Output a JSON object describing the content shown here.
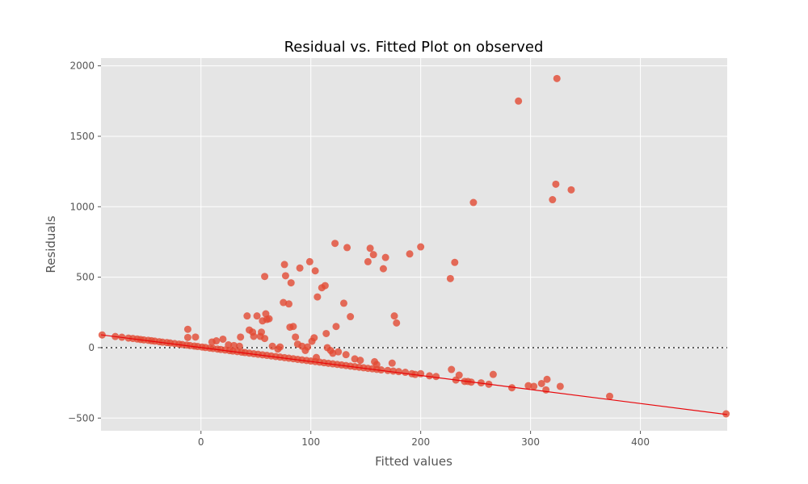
{
  "chart_data": {
    "type": "scatter",
    "title": "Residual vs. Fitted Plot on observed",
    "xlabel": "Fitted values",
    "ylabel": "Residuals",
    "xlim": [
      -91,
      479
    ],
    "ylim": [
      -590,
      2055
    ],
    "xticks": [
      0,
      100,
      200,
      300,
      400
    ],
    "yticks": [
      -500,
      0,
      500,
      1000,
      1500,
      2000
    ],
    "xtick_labels": [
      "0",
      "100",
      "200",
      "300",
      "400"
    ],
    "ytick_labels": [
      "−500",
      "0",
      "500",
      "1000",
      "1500",
      "2000"
    ],
    "grid": true,
    "reference_line": {
      "y": 0,
      "style": "dotted",
      "color": "#333333"
    },
    "fit_line": {
      "points": [
        [
          -91,
          91
        ],
        [
          479,
          -475
        ]
      ],
      "color": "#e8060a"
    },
    "colors": {
      "background": "#e5e5e5",
      "grid": "#ffffff",
      "points": "#e24a33"
    },
    "points": [
      [
        -90,
        90
      ],
      [
        -78,
        79
      ],
      [
        -72,
        74
      ],
      [
        -66,
        68
      ],
      [
        -62,
        65
      ],
      [
        -58,
        61
      ],
      [
        -55,
        58
      ],
      [
        -52,
        55
      ],
      [
        -48,
        52
      ],
      [
        -45,
        49
      ],
      [
        -42,
        46
      ],
      [
        -38,
        42
      ],
      [
        -35,
        39
      ],
      [
        -31,
        36
      ],
      [
        -28,
        33
      ],
      [
        -24,
        29
      ],
      [
        -20,
        25
      ],
      [
        -17,
        22
      ],
      [
        -13,
        18
      ],
      [
        -10,
        15
      ],
      [
        -6,
        11
      ],
      [
        -3,
        8
      ],
      [
        1,
        4
      ],
      [
        4,
        1
      ],
      [
        8,
        -3
      ],
      [
        11,
        -6
      ],
      [
        15,
        -10
      ],
      [
        18,
        -13
      ],
      [
        22,
        -17
      ],
      [
        26,
        -21
      ],
      [
        29,
        -24
      ],
      [
        33,
        -28
      ],
      [
        37,
        -32
      ],
      [
        40,
        -35
      ],
      [
        44,
        -39
      ],
      [
        48,
        -43
      ],
      [
        52,
        -47
      ],
      [
        56,
        -51
      ],
      [
        60,
        -55
      ],
      [
        64,
        -59
      ],
      [
        68,
        -63
      ],
      [
        72,
        -67
      ],
      [
        76,
        -71
      ],
      [
        80,
        -75
      ],
      [
        84,
        -79
      ],
      [
        88,
        -83
      ],
      [
        92,
        -87
      ],
      [
        96,
        -91
      ],
      [
        100,
        -95
      ],
      [
        104,
        -99
      ],
      [
        108,
        -103
      ],
      [
        112,
        -107
      ],
      [
        116,
        -111
      ],
      [
        120,
        -115
      ],
      [
        124,
        -119
      ],
      [
        128,
        -123
      ],
      [
        132,
        -127
      ],
      [
        136,
        -131
      ],
      [
        140,
        -135
      ],
      [
        144,
        -139
      ],
      [
        148,
        -143
      ],
      [
        152,
        -147
      ],
      [
        156,
        -150
      ],
      [
        160,
        -154
      ],
      [
        164,
        -158
      ],
      [
        170,
        -162
      ],
      [
        175,
        -166
      ],
      [
        180,
        -170
      ],
      [
        -12,
        130
      ],
      [
        -12,
        72
      ],
      [
        -5,
        75
      ],
      [
        14,
        48
      ],
      [
        20,
        60
      ],
      [
        10,
        40
      ],
      [
        25,
        20
      ],
      [
        30,
        15
      ],
      [
        35,
        10
      ],
      [
        36,
        75
      ],
      [
        42,
        225
      ],
      [
        44,
        125
      ],
      [
        47,
        110
      ],
      [
        48,
        80
      ],
      [
        51,
        225
      ],
      [
        54,
        80
      ],
      [
        55,
        110
      ],
      [
        56,
        190
      ],
      [
        58,
        505
      ],
      [
        59,
        240
      ],
      [
        60,
        200
      ],
      [
        62,
        205
      ],
      [
        58,
        65
      ],
      [
        65,
        10
      ],
      [
        70,
        -10
      ],
      [
        72,
        5
      ],
      [
        75,
        320
      ],
      [
        76,
        590
      ],
      [
        77,
        510
      ],
      [
        80,
        310
      ],
      [
        81,
        145
      ],
      [
        82,
        460
      ],
      [
        84,
        150
      ],
      [
        86,
        75
      ],
      [
        88,
        25
      ],
      [
        90,
        565
      ],
      [
        92,
        10
      ],
      [
        95,
        -20
      ],
      [
        97,
        5
      ],
      [
        99,
        610
      ],
      [
        101,
        45
      ],
      [
        103,
        70
      ],
      [
        104,
        545
      ],
      [
        106,
        360
      ],
      [
        105,
        -70
      ],
      [
        110,
        425
      ],
      [
        113,
        440
      ],
      [
        114,
        100
      ],
      [
        115,
        0
      ],
      [
        118,
        -20
      ],
      [
        120,
        -40
      ],
      [
        122,
        740
      ],
      [
        123,
        150
      ],
      [
        125,
        -30
      ],
      [
        130,
        315
      ],
      [
        132,
        -50
      ],
      [
        133,
        710
      ],
      [
        136,
        220
      ],
      [
        140,
        -80
      ],
      [
        145,
        -90
      ],
      [
        152,
        610
      ],
      [
        154,
        705
      ],
      [
        157,
        660
      ],
      [
        158,
        -100
      ],
      [
        160,
        -120
      ],
      [
        166,
        560
      ],
      [
        168,
        640
      ],
      [
        174,
        -110
      ],
      [
        176,
        225
      ],
      [
        178,
        175
      ],
      [
        186,
        -175
      ],
      [
        190,
        665
      ],
      [
        192,
        -185
      ],
      [
        195,
        -190
      ],
      [
        200,
        715
      ],
      [
        200,
        -185
      ],
      [
        208,
        -200
      ],
      [
        214,
        -205
      ],
      [
        227,
        490
      ],
      [
        228,
        -155
      ],
      [
        231,
        605
      ],
      [
        232,
        -230
      ],
      [
        235,
        -195
      ],
      [
        240,
        -240
      ],
      [
        243,
        -240
      ],
      [
        246,
        -245
      ],
      [
        248,
        1030
      ],
      [
        255,
        -250
      ],
      [
        262,
        -260
      ],
      [
        266,
        -190
      ],
      [
        283,
        -285
      ],
      [
        289,
        1750
      ],
      [
        298,
        -270
      ],
      [
        303,
        -275
      ],
      [
        310,
        -255
      ],
      [
        314,
        -300
      ],
      [
        315,
        -225
      ],
      [
        320,
        1050
      ],
      [
        323,
        1160
      ],
      [
        324,
        1910
      ],
      [
        327,
        -275
      ],
      [
        337,
        1120
      ],
      [
        372,
        -345
      ],
      [
        478,
        -470
      ]
    ]
  }
}
